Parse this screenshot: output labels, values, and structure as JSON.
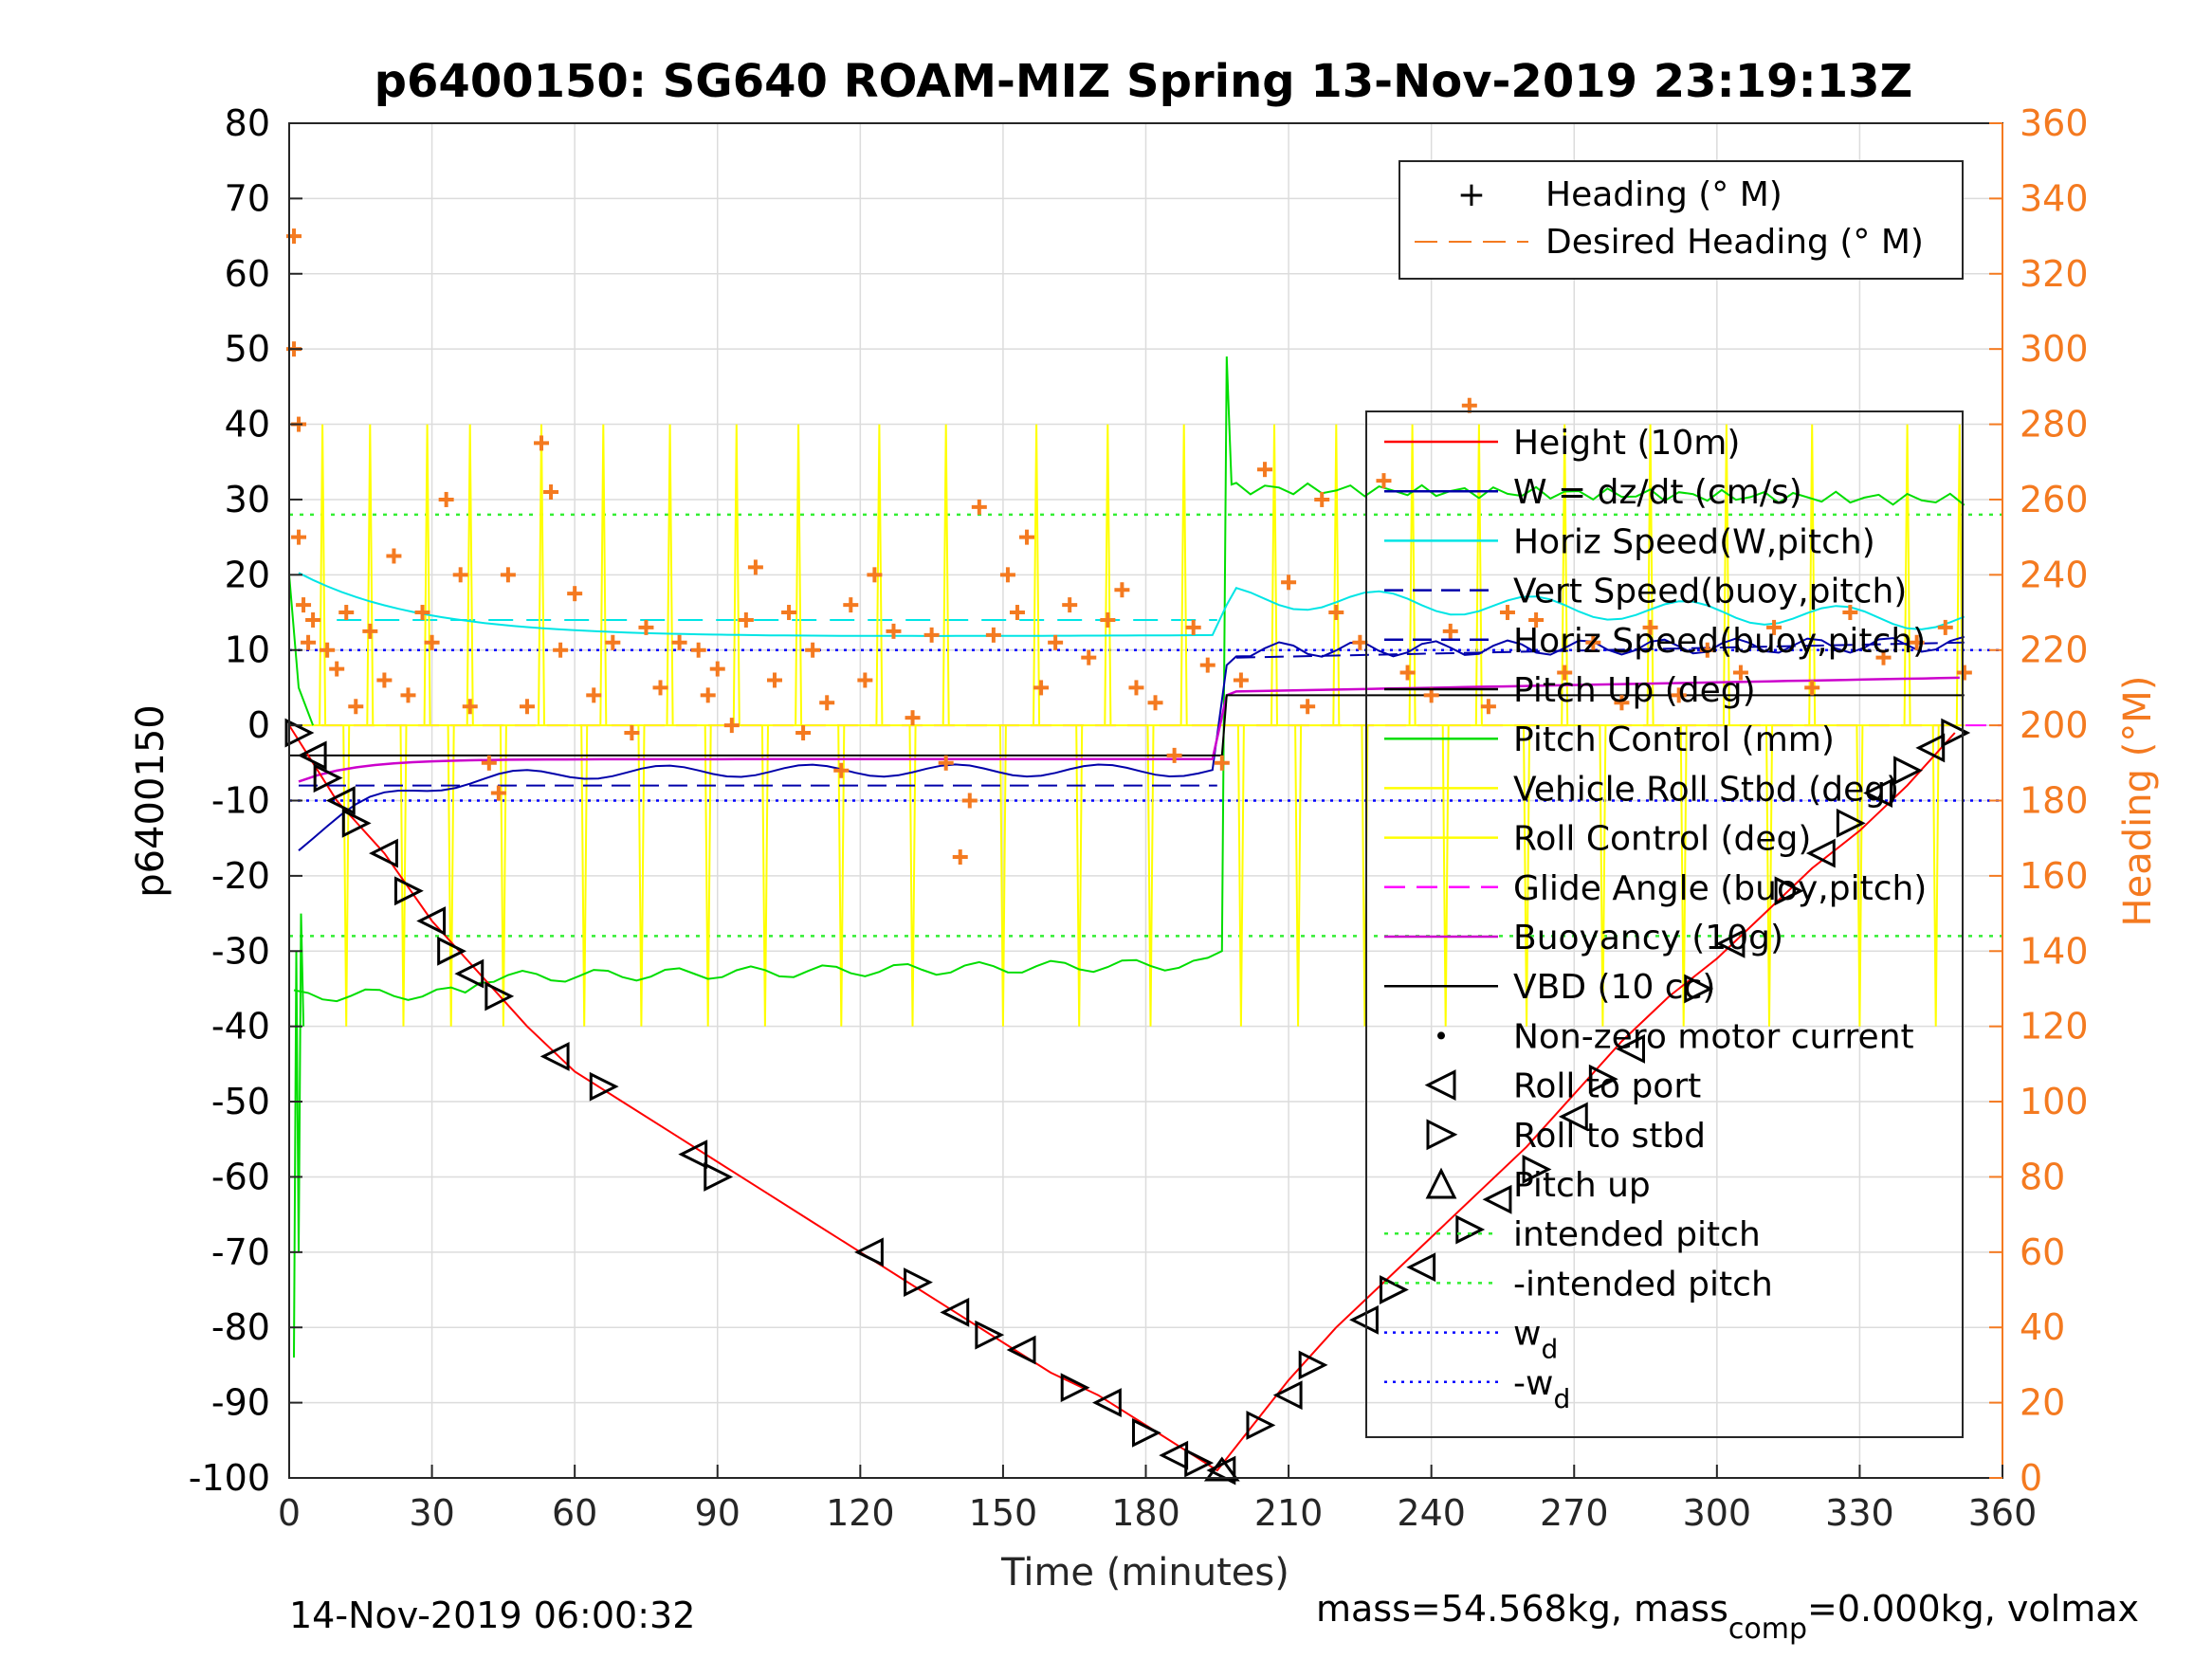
{
  "chart_data": {
    "type": "line",
    "title": "p6400150: SG640 ROAM-MIZ Spring 13-Nov-2019 23:19:13Z",
    "xlabel": "Time (minutes)",
    "ylabel_left": "p6400150",
    "ylabel_right": "Heading (°M)",
    "xlim": [
      0,
      360
    ],
    "ylim_left": [
      -100,
      80
    ],
    "ylim_right": [
      0,
      360
    ],
    "x_ticks": [
      0,
      30,
      60,
      90,
      120,
      150,
      180,
      210,
      240,
      270,
      300,
      330,
      360
    ],
    "y_left_ticks": [
      80,
      70,
      60,
      50,
      40,
      30,
      20,
      10,
      0,
      -10,
      -20,
      -30,
      -40,
      -50,
      -60,
      -70,
      -80,
      -90,
      -100
    ],
    "y_right_ticks": [
      360,
      340,
      320,
      300,
      280,
      260,
      240,
      220,
      200,
      180,
      160,
      140,
      120,
      100,
      80,
      60,
      40,
      20,
      0
    ],
    "grid": true,
    "colors": {
      "height": "#ff0000",
      "w": "#0000aa",
      "horiz_speed": "#00e5e5",
      "pitch": "#00dd00",
      "roll": "#ffff00",
      "glide": "#ff00ff",
      "buoyancy": "#cc00cc",
      "vbd": "#000000",
      "heading": "#f47a20",
      "wd": "#0000ff",
      "intended": "#33ee33"
    },
    "legend_top": {
      "position": "top-right",
      "entries": [
        "Heading (° M)",
        "Desired Heading (° M)"
      ]
    },
    "legend_main": {
      "position": "right",
      "entries": [
        "Height (10m)",
        "W = dz/dt (cm/s)",
        "Horiz Speed(W,pitch)",
        "Vert Speed(buoy,pitch)",
        "Horiz Speed(buoy,pitch)",
        "Pitch Up (deg)",
        "Pitch Control (mm)",
        "Vehicle Roll Stbd (deg)",
        "Roll Control (deg)",
        "Glide Angle (buoy,pitch)",
        "Buoyancy (10g)",
        "VBD (10 cc)",
        "Non-zero motor current",
        "Roll to port",
        "Roll to stbd",
        "Pitch up",
        "intended pitch",
        "-intended pitch",
        "w",
        "-w"
      ],
      "subscript": "d"
    },
    "height_series": {
      "x": [
        0,
        5,
        10,
        20,
        30,
        40,
        50,
        60,
        70,
        80,
        90,
        100,
        110,
        120,
        130,
        140,
        150,
        160,
        170,
        180,
        190,
        195,
        200,
        210,
        220,
        230,
        240,
        250,
        260,
        270,
        280,
        290,
        300,
        310,
        320,
        330,
        340,
        350
      ],
      "y": [
        0,
        -5,
        -10,
        -17,
        -26,
        -33,
        -40,
        -46,
        -50,
        -54,
        -58,
        -62,
        -66,
        -70,
        -74,
        -78,
        -82,
        -86,
        -89,
        -93,
        -97,
        -99,
        -95,
        -87,
        -80,
        -74,
        -68,
        -62,
        -56,
        -49,
        -42,
        -36,
        -31,
        -25,
        -19,
        -14,
        -8,
        -1
      ]
    },
    "heading_points": {
      "x": [
        1,
        1,
        2,
        2,
        3,
        4,
        5,
        8,
        10,
        12,
        14,
        17,
        20,
        22,
        25,
        28,
        30,
        33,
        36,
        38,
        42,
        44,
        46,
        50,
        53,
        55,
        57,
        60,
        64,
        68,
        72,
        75,
        78,
        82,
        86,
        88,
        90,
        93,
        96,
        98,
        102,
        105,
        108,
        110,
        113,
        116,
        118,
        121,
        123,
        127,
        131,
        135,
        138,
        141,
        143,
        145,
        148,
        151,
        153,
        155,
        158,
        161,
        164,
        168,
        172,
        175,
        178,
        182,
        186,
        190,
        193,
        196,
        200,
        205,
        210,
        214,
        217,
        220,
        225,
        230,
        235,
        240,
        244,
        248,
        252,
        256,
        262,
        268,
        274,
        280,
        286,
        292,
        298,
        305,
        312,
        320,
        328,
        335,
        342,
        348,
        352
      ],
      "y": [
        330,
        300,
        280,
        250,
        232,
        222,
        228,
        220,
        215,
        230,
        205,
        225,
        212,
        245,
        208,
        230,
        222,
        260,
        240,
        205,
        190,
        182,
        240,
        205,
        275,
        262,
        220,
        235,
        208,
        222,
        198,
        226,
        210,
        222,
        220,
        208,
        215,
        200,
        228,
        242,
        212,
        230,
        198,
        220,
        206,
        188,
        232,
        212,
        240,
        225,
        202,
        224,
        190,
        165,
        180,
        258,
        224,
        240,
        230,
        250,
        210,
        222,
        232,
        218,
        228,
        236,
        210,
        206,
        192,
        226,
        216,
        190,
        212,
        268,
        238,
        205,
        260,
        230,
        222,
        265,
        214,
        208,
        225,
        285,
        205,
        230,
        228,
        214,
        222,
        206,
        226,
        208,
        220,
        214,
        226,
        210,
        230,
        218,
        222,
        226,
        214
      ]
    },
    "roll_markers": {
      "x": [
        2,
        5,
        8,
        11,
        14,
        20,
        25,
        30,
        34,
        38,
        44,
        56,
        66,
        85,
        90,
        122,
        132,
        140,
        147,
        154,
        165,
        172,
        180,
        186,
        191,
        196,
        204,
        210,
        215,
        226,
        232,
        238,
        248,
        254,
        262,
        270,
        276,
        282,
        296,
        303,
        315,
        322,
        328,
        334,
        340,
        345,
        350
      ],
      "y": [
        -1,
        -4,
        -7,
        -10,
        -13,
        -17,
        -22,
        -26,
        -30,
        -33,
        -36,
        -44,
        -48,
        -57,
        -60,
        -70,
        -74,
        -78,
        -81,
        -83,
        -88,
        -90,
        -94,
        -97,
        -98,
        -99,
        -93,
        -89,
        -85,
        -79,
        -75,
        -72,
        -67,
        -63,
        -59,
        -52,
        -47,
        -43,
        -35,
        -29,
        -22,
        -17,
        -13,
        -9,
        -6,
        -3,
        -1
      ]
    }
  },
  "footer": {
    "left": "14-Nov-2019 06:00:32",
    "right_pre": "mass=54.568kg, mass",
    "right_sub": "comp",
    "right_post": "=0.000kg, volmax"
  }
}
